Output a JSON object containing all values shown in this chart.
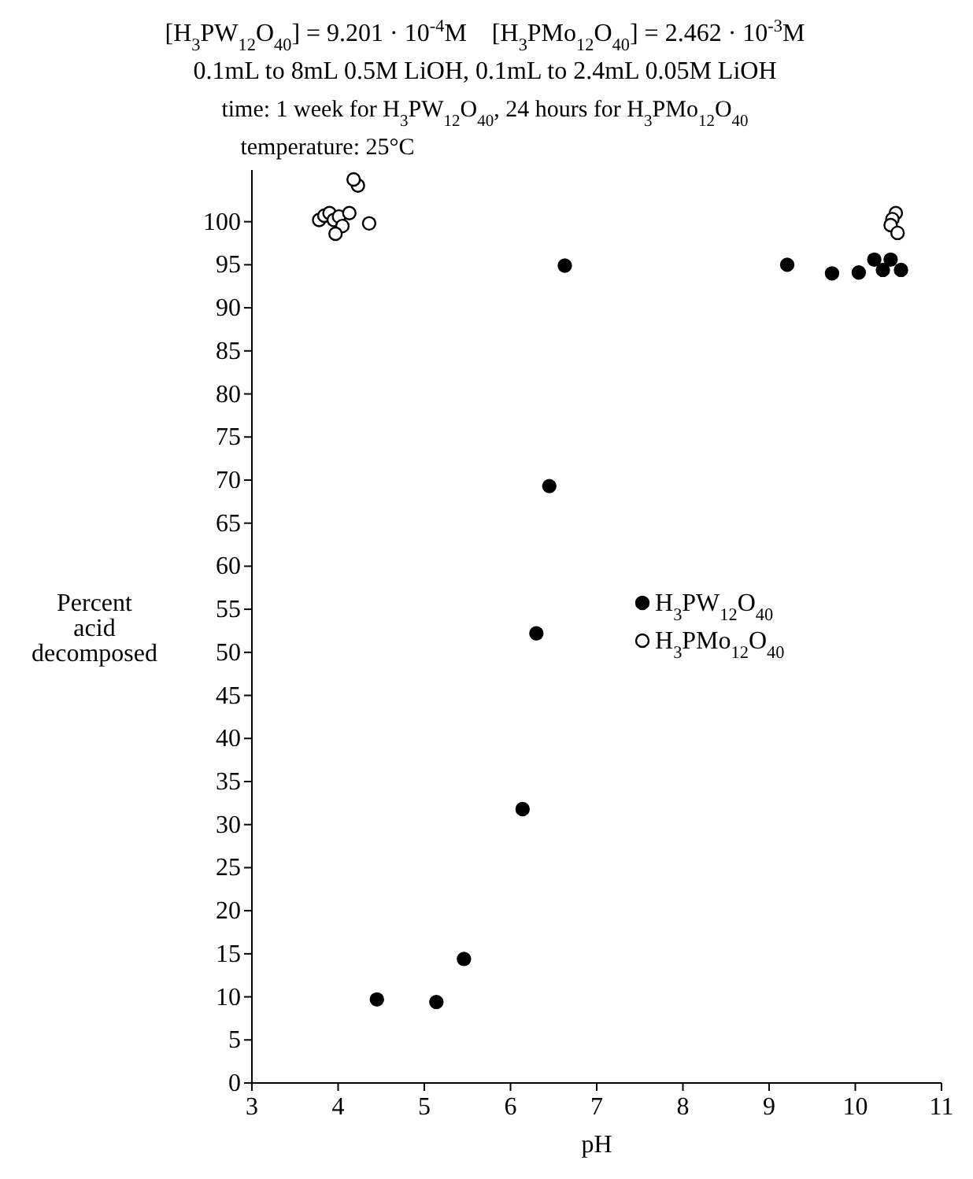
{
  "chart_data": {
    "type": "scatter",
    "title": "[H$_{3}$PW$_{12}$O$_{40}$] = 9.201 · 10$^{-4}$M    [H$_{3}$PMo$_{12}$O$_{40}$] = 2.462 · 10$^{-3}$M",
    "subtitle": "0.1mL to 8mL 0.5M LiOH, 0.1mL to 2.4mL 0.05M LiOH",
    "annotations": [
      "time: 1 week for H$_{3}$PW$_{12}$O$_{40}$, 24 hours for H$_{3}$PMo$_{12}$O$_{40}$",
      "temperature: 25°C"
    ],
    "xlabel": "pH",
    "ylabel": "Percent\nacid\ndecomposed",
    "xlim": [
      3,
      11
    ],
    "xticks": [
      3,
      4,
      5,
      6,
      7,
      8,
      9,
      10,
      11
    ],
    "ylim": [
      0,
      106
    ],
    "yticks": [
      0,
      5,
      10,
      15,
      20,
      25,
      30,
      35,
      40,
      45,
      50,
      55,
      60,
      65,
      70,
      75,
      80,
      85,
      90,
      95,
      100
    ],
    "grid": false,
    "legend": "right",
    "marker": "circle",
    "series": [
      {
        "name": "H$_{3}$PW$_{12}$O$_{40}$",
        "color": "#000000",
        "x": [
          4.45,
          5.14,
          5.46,
          6.14,
          6.3,
          6.45,
          6.63,
          9.21,
          9.73,
          10.04,
          10.22,
          10.32,
          10.41,
          10.53
        ],
        "values": [
          9.7,
          9.4,
          14.4,
          31.8,
          52.2,
          69.3,
          94.9,
          95,
          94,
          94.1,
          95.6,
          94.4,
          95.6,
          94.4
        ]
      },
      {
        "name": "H$_{3}$PMo$_{12}$O$_{40}$",
        "color": "#ffffff",
        "x": [
          3.78,
          3.84,
          3.9,
          3.95,
          4.01,
          4.05,
          3.97,
          4.13,
          4.36,
          4.23,
          4.18,
          10.47,
          10.43,
          10.41,
          10.49
        ],
        "values": [
          100.2,
          100.7,
          101,
          100.2,
          100.6,
          99.5,
          98.6,
          101,
          99.8,
          104.2,
          104.9,
          101,
          100.3,
          99.6,
          98.7
        ]
      }
    ]
  }
}
